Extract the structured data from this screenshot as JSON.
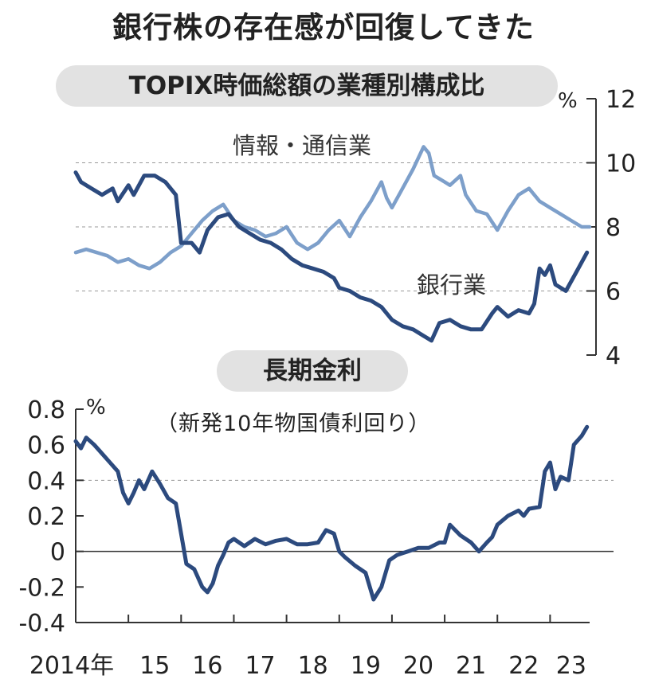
{
  "title": "銀行株の存在感が回復してきた",
  "panel1_label": "TOPIX時価総額の業種別構成比",
  "panel1_unit": "%",
  "panel2_label": "長期金利",
  "panel2_subtitle": "（新発10年物国債利回り）",
  "panel2_unit": "%",
  "colors": {
    "light_series": "#7d9fca",
    "dark_series": "#2c4a7e",
    "grid": "#999999",
    "panel_bg": "#e2e2e2"
  },
  "chart_data": [
    {
      "type": "line",
      "title": "TOPIX時価総額の業種別構成比",
      "ylabel": "%",
      "ylim": [
        4,
        12
      ],
      "yticks": [
        "12",
        "10",
        "8",
        "6",
        "4"
      ],
      "y_axis_position": "right",
      "grid": "dashed at 6, 8, 10",
      "x_range": [
        2014.0,
        2023.75
      ],
      "series": [
        {
          "name": "情報・通信業",
          "color": "#7d9fca",
          "points": [
            [
              2014.0,
              7.2
            ],
            [
              2014.2,
              7.3
            ],
            [
              2014.4,
              7.2
            ],
            [
              2014.6,
              7.1
            ],
            [
              2014.8,
              6.9
            ],
            [
              2015.0,
              7.0
            ],
            [
              2015.2,
              6.8
            ],
            [
              2015.4,
              6.7
            ],
            [
              2015.6,
              6.9
            ],
            [
              2015.8,
              7.2
            ],
            [
              2016.0,
              7.4
            ],
            [
              2016.2,
              7.8
            ],
            [
              2016.4,
              8.2
            ],
            [
              2016.6,
              8.5
            ],
            [
              2016.8,
              8.7
            ],
            [
              2017.0,
              8.2
            ],
            [
              2017.2,
              8.0
            ],
            [
              2017.4,
              7.9
            ],
            [
              2017.6,
              7.7
            ],
            [
              2017.8,
              7.8
            ],
            [
              2018.0,
              8.0
            ],
            [
              2018.2,
              7.5
            ],
            [
              2018.4,
              7.3
            ],
            [
              2018.6,
              7.5
            ],
            [
              2018.8,
              7.9
            ],
            [
              2019.0,
              8.2
            ],
            [
              2019.2,
              7.7
            ],
            [
              2019.4,
              8.3
            ],
            [
              2019.6,
              8.8
            ],
            [
              2019.8,
              9.4
            ],
            [
              2019.9,
              8.9
            ],
            [
              2020.0,
              8.6
            ],
            [
              2020.2,
              9.2
            ],
            [
              2020.4,
              9.8
            ],
            [
              2020.6,
              10.5
            ],
            [
              2020.7,
              10.3
            ],
            [
              2020.8,
              9.6
            ],
            [
              2021.0,
              9.4
            ],
            [
              2021.1,
              9.3
            ],
            [
              2021.3,
              9.6
            ],
            [
              2021.4,
              9.0
            ],
            [
              2021.6,
              8.5
            ],
            [
              2021.8,
              8.4
            ],
            [
              2022.0,
              7.9
            ],
            [
              2022.2,
              8.5
            ],
            [
              2022.4,
              9.0
            ],
            [
              2022.6,
              9.2
            ],
            [
              2022.8,
              8.8
            ],
            [
              2023.0,
              8.6
            ],
            [
              2023.2,
              8.4
            ],
            [
              2023.4,
              8.2
            ],
            [
              2023.6,
              8.0
            ],
            [
              2023.75,
              8.0
            ]
          ]
        },
        {
          "name": "銀行業",
          "color": "#2c4a7e",
          "points": [
            [
              2014.0,
              9.7
            ],
            [
              2014.1,
              9.4
            ],
            [
              2014.3,
              9.2
            ],
            [
              2014.5,
              9.0
            ],
            [
              2014.7,
              9.2
            ],
            [
              2014.8,
              8.8
            ],
            [
              2015.0,
              9.3
            ],
            [
              2015.1,
              9.0
            ],
            [
              2015.3,
              9.6
            ],
            [
              2015.5,
              9.6
            ],
            [
              2015.7,
              9.4
            ],
            [
              2015.9,
              9.0
            ],
            [
              2016.0,
              7.5
            ],
            [
              2016.2,
              7.5
            ],
            [
              2016.35,
              7.2
            ],
            [
              2016.5,
              7.9
            ],
            [
              2016.7,
              8.3
            ],
            [
              2016.9,
              8.4
            ],
            [
              2017.1,
              8.0
            ],
            [
              2017.3,
              7.8
            ],
            [
              2017.5,
              7.6
            ],
            [
              2017.7,
              7.5
            ],
            [
              2017.9,
              7.3
            ],
            [
              2018.1,
              7.0
            ],
            [
              2018.3,
              6.8
            ],
            [
              2018.5,
              6.7
            ],
            [
              2018.7,
              6.6
            ],
            [
              2018.9,
              6.4
            ],
            [
              2019.0,
              6.1
            ],
            [
              2019.2,
              6.0
            ],
            [
              2019.4,
              5.8
            ],
            [
              2019.6,
              5.7
            ],
            [
              2019.8,
              5.5
            ],
            [
              2020.0,
              5.1
            ],
            [
              2020.2,
              4.9
            ],
            [
              2020.4,
              4.8
            ],
            [
              2020.6,
              4.6
            ],
            [
              2020.75,
              4.45
            ],
            [
              2020.9,
              5.0
            ],
            [
              2021.1,
              5.1
            ],
            [
              2021.3,
              4.9
            ],
            [
              2021.5,
              4.8
            ],
            [
              2021.7,
              4.8
            ],
            [
              2021.9,
              5.3
            ],
            [
              2022.0,
              5.5
            ],
            [
              2022.2,
              5.2
            ],
            [
              2022.4,
              5.4
            ],
            [
              2022.6,
              5.3
            ],
            [
              2022.7,
              5.6
            ],
            [
              2022.8,
              6.7
            ],
            [
              2022.9,
              6.5
            ],
            [
              2023.0,
              6.8
            ],
            [
              2023.1,
              6.2
            ],
            [
              2023.3,
              6.0
            ],
            [
              2023.5,
              6.6
            ],
            [
              2023.6,
              6.9
            ],
            [
              2023.7,
              7.2
            ]
          ]
        }
      ]
    },
    {
      "type": "line",
      "title": "長期金利",
      "subtitle": "（新発10年物国債利回り）",
      "ylabel": "%",
      "ylim": [
        -0.4,
        0.8
      ],
      "yticks": [
        "0.8",
        "0.6",
        "0.4",
        "0.2",
        "0",
        "-0.2",
        "-0.4"
      ],
      "y_axis_position": "left",
      "grid": "dashed at 0.4, solid zero line",
      "xticks": [
        "2014年",
        "15",
        "16",
        "17",
        "18",
        "19",
        "20",
        "21",
        "22",
        "23"
      ],
      "x_range": [
        2014.0,
        2023.75
      ],
      "series": [
        {
          "color": "#2c4a7e",
          "points": [
            [
              2014.0,
              0.62
            ],
            [
              2014.1,
              0.58
            ],
            [
              2014.2,
              0.64
            ],
            [
              2014.35,
              0.6
            ],
            [
              2014.5,
              0.55
            ],
            [
              2014.65,
              0.5
            ],
            [
              2014.8,
              0.45
            ],
            [
              2014.9,
              0.33
            ],
            [
              2015.0,
              0.27
            ],
            [
              2015.1,
              0.33
            ],
            [
              2015.2,
              0.4
            ],
            [
              2015.3,
              0.35
            ],
            [
              2015.45,
              0.45
            ],
            [
              2015.6,
              0.38
            ],
            [
              2015.75,
              0.3
            ],
            [
              2015.9,
              0.27
            ],
            [
              2016.0,
              0.1
            ],
            [
              2016.1,
              -0.07
            ],
            [
              2016.25,
              -0.1
            ],
            [
              2016.4,
              -0.2
            ],
            [
              2016.5,
              -0.23
            ],
            [
              2016.6,
              -0.18
            ],
            [
              2016.7,
              -0.08
            ],
            [
              2016.8,
              -0.02
            ],
            [
              2016.9,
              0.05
            ],
            [
              2017.0,
              0.07
            ],
            [
              2017.2,
              0.03
            ],
            [
              2017.4,
              0.07
            ],
            [
              2017.6,
              0.04
            ],
            [
              2017.8,
              0.06
            ],
            [
              2018.0,
              0.07
            ],
            [
              2018.2,
              0.04
            ],
            [
              2018.4,
              0.04
            ],
            [
              2018.6,
              0.05
            ],
            [
              2018.75,
              0.12
            ],
            [
              2018.9,
              0.1
            ],
            [
              2019.0,
              0.0
            ],
            [
              2019.1,
              -0.03
            ],
            [
              2019.3,
              -0.08
            ],
            [
              2019.5,
              -0.12
            ],
            [
              2019.65,
              -0.27
            ],
            [
              2019.8,
              -0.2
            ],
            [
              2019.95,
              -0.05
            ],
            [
              2020.1,
              -0.02
            ],
            [
              2020.3,
              0.0
            ],
            [
              2020.5,
              0.02
            ],
            [
              2020.7,
              0.02
            ],
            [
              2020.9,
              0.05
            ],
            [
              2021.0,
              0.05
            ],
            [
              2021.1,
              0.15
            ],
            [
              2021.3,
              0.09
            ],
            [
              2021.5,
              0.05
            ],
            [
              2021.65,
              0.0
            ],
            [
              2021.8,
              0.05
            ],
            [
              2021.9,
              0.08
            ],
            [
              2022.0,
              0.15
            ],
            [
              2022.2,
              0.2
            ],
            [
              2022.4,
              0.23
            ],
            [
              2022.5,
              0.2
            ],
            [
              2022.6,
              0.24
            ],
            [
              2022.8,
              0.25
            ],
            [
              2022.9,
              0.45
            ],
            [
              2023.0,
              0.5
            ],
            [
              2023.1,
              0.35
            ],
            [
              2023.2,
              0.42
            ],
            [
              2023.35,
              0.4
            ],
            [
              2023.45,
              0.6
            ],
            [
              2023.6,
              0.65
            ],
            [
              2023.7,
              0.7
            ]
          ]
        }
      ]
    }
  ]
}
